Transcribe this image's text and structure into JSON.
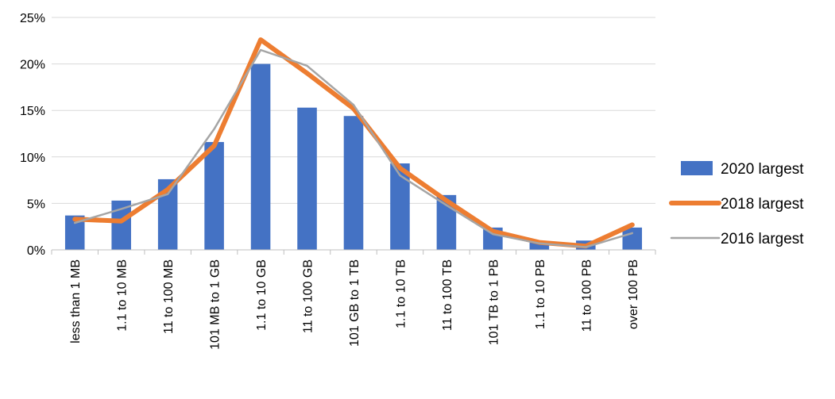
{
  "chart_data": {
    "type": "bar",
    "categories": [
      "less than 1 MB",
      "1.1 to 10 MB",
      "11 to 100 MB",
      "101 MB to 1 GB",
      "1.1 to 10 GB",
      "11 to 100 GB",
      "101 GB to 1 TB",
      "1.1 to 10 TB",
      "11 to 100 TB",
      "101 TB to 1 PB",
      "1.1 to 10 PB",
      "11 to 100 PB",
      "over 100 PB"
    ],
    "y_ticks": [
      "0%",
      "5%",
      "10%",
      "15%",
      "20%",
      "25%"
    ],
    "ylim": [
      0,
      25
    ],
    "y_unit": "%",
    "grid": true,
    "legend_position": "right",
    "series": [
      {
        "name": "2020 largest",
        "kind": "bar",
        "color": "#4472C4",
        "values": [
          3.7,
          5.3,
          7.6,
          11.6,
          20.0,
          15.3,
          14.4,
          9.3,
          5.9,
          2.4,
          0.8,
          1.0,
          2.4
        ]
      },
      {
        "name": "2018 largest",
        "kind": "line",
        "color": "#ED7D31",
        "values": [
          3.3,
          3.1,
          6.5,
          11.2,
          22.6,
          19.0,
          15.2,
          8.8,
          5.3,
          2.0,
          0.8,
          0.4,
          2.7
        ]
      },
      {
        "name": "2016 largest",
        "kind": "line",
        "color": "#A5A5A5",
        "values": [
          2.9,
          4.4,
          6.0,
          13.0,
          21.5,
          19.8,
          15.6,
          8.0,
          4.8,
          1.7,
          0.7,
          0.3,
          1.8
        ]
      }
    ]
  }
}
